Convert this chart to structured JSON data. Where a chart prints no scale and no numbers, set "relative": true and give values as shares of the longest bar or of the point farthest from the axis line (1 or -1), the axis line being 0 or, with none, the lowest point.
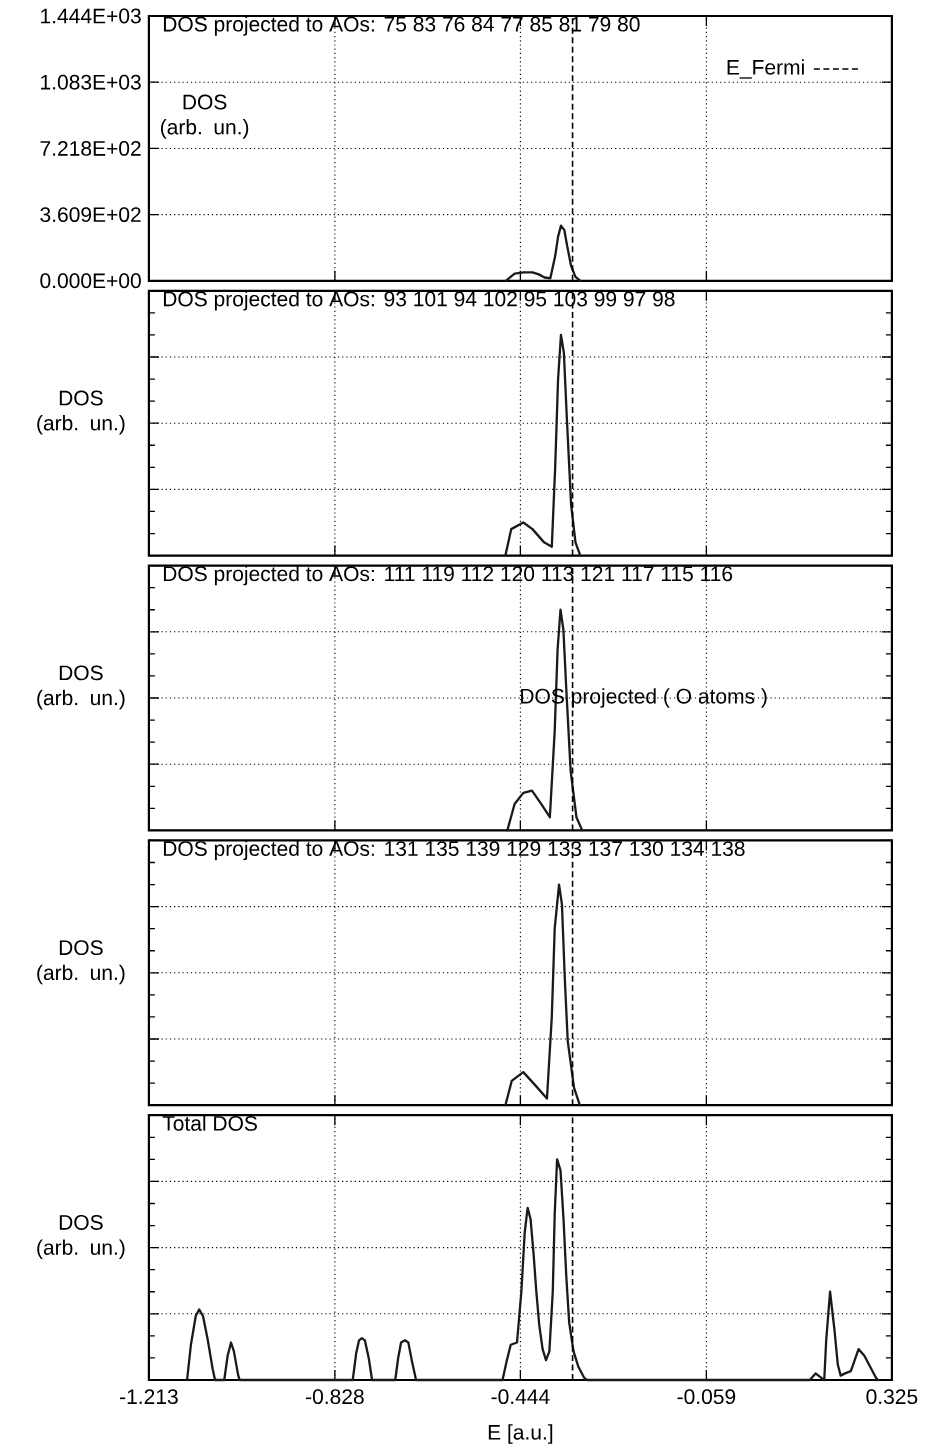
{
  "chart_data": [
    {
      "type": "line",
      "title": "DOS projected to AOs: 75 83 76 84 77 85 81 79 80",
      "ylabel": "DOS (arb. un.)",
      "x": [
        -0.474,
        -0.456,
        -0.437,
        -0.419,
        -0.406,
        -0.394,
        -0.382,
        -0.372,
        -0.366,
        -0.36,
        -0.353,
        -0.347,
        -0.339,
        -0.33,
        -0.32
      ],
      "values": [
        0,
        39,
        46,
        46,
        35,
        18,
        14,
        135,
        241,
        301,
        276,
        188,
        81,
        21,
        0
      ],
      "color": "#1a1a1a",
      "xlim": [
        -1.213,
        0.325
      ],
      "ylim": [
        0,
        1444
      ],
      "xticks": [
        -1.213,
        -0.828,
        -0.444,
        -0.059,
        0.325
      ],
      "yticks": [
        {
          "value": 0,
          "label": "0.000E+00"
        },
        {
          "value": 360.9,
          "label": "3.609E+02"
        },
        {
          "value": 721.8,
          "label": "7.218E+02"
        },
        {
          "value": 1083,
          "label": "1.083E+03"
        },
        {
          "value": 1444,
          "label": "1.444E+03"
        }
      ],
      "tick_labels": "y",
      "grid": true,
      "ref_lines": [
        {
          "axis": "x",
          "value": -0.336,
          "label": "E_Fermi",
          "line_style": "dashed"
        }
      ]
    },
    {
      "type": "line",
      "relative": true,
      "title": "DOS projected to AOs: 93 101 94 102 95 103 99 97 98",
      "ylabel": "DOS (arb. un.)",
      "x": [
        -0.475,
        -0.463,
        -0.438,
        -0.419,
        -0.395,
        -0.379,
        -0.372,
        -0.366,
        -0.36,
        -0.354,
        -0.348,
        -0.339,
        -0.33,
        -0.32
      ],
      "values": [
        0,
        0.12,
        0.15,
        0.12,
        0.06,
        0.04,
        0.4,
        0.8,
        1,
        0.92,
        0.63,
        0.23,
        0.06,
        0
      ],
      "color": "#1a1a1a",
      "xlim": [
        -1.213,
        0.325
      ],
      "xticks": [
        -1.213,
        -0.828,
        -0.444,
        -0.059,
        0.325
      ],
      "tick_labels": false,
      "grid": true,
      "ref_lines": [
        {
          "axis": "x",
          "value": -0.336,
          "line_style": "dashed"
        }
      ]
    },
    {
      "type": "line",
      "relative": true,
      "title": "DOS projected to AOs: 111 119 112 120 113 121 117 115 116",
      "ylabel": "DOS (arb. un.)",
      "annotations": [
        "DOS projected ( O atoms )"
      ],
      "x": [
        -0.471,
        -0.456,
        -0.438,
        -0.42,
        -0.401,
        -0.383,
        -0.373,
        -0.367,
        -0.361,
        -0.355,
        -0.349,
        -0.34,
        -0.328,
        -0.316
      ],
      "values": [
        0,
        0.12,
        0.17,
        0.18,
        0.12,
        0.06,
        0.45,
        0.82,
        1,
        0.91,
        0.64,
        0.27,
        0.06,
        0
      ],
      "color": "#1a1a1a",
      "xlim": [
        -1.213,
        0.325
      ],
      "xticks": [
        -1.213,
        -0.828,
        -0.444,
        -0.059,
        0.325
      ],
      "tick_labels": false,
      "grid": true,
      "ref_lines": [
        {
          "axis": "x",
          "value": -0.336,
          "line_style": "dashed"
        }
      ]
    },
    {
      "type": "line",
      "relative": true,
      "title": "DOS projected to AOs: 131 135 139 129 133 137 130 134 138",
      "ylabel": "DOS (arb. un.)",
      "x": [
        -0.475,
        -0.462,
        -0.438,
        -0.413,
        -0.389,
        -0.379,
        -0.373,
        -0.364,
        -0.358,
        -0.352,
        -0.346,
        -0.333,
        -0.321
      ],
      "values": [
        0,
        0.11,
        0.15,
        0.09,
        0.03,
        0.4,
        0.8,
        1,
        0.91,
        0.57,
        0.29,
        0.08,
        0
      ],
      "color": "#1a1a1a",
      "xlim": [
        -1.213,
        0.325
      ],
      "xticks": [
        -1.213,
        -0.828,
        -0.444,
        -0.059,
        0.325
      ],
      "tick_labels": false,
      "grid": true,
      "ref_lines": [
        {
          "axis": "x",
          "value": -0.336,
          "line_style": "dashed"
        }
      ]
    },
    {
      "type": "line",
      "relative": true,
      "title": "Total DOS",
      "ylabel": "DOS (arb. un.)",
      "xlabel": "E [a.u.]",
      "x": [
        -1.134,
        -1.126,
        -1.116,
        -1.109,
        -1.101,
        -1.091,
        -1.081,
        -1.076,
        -1.057,
        -1.05,
        -1.043,
        -1.037,
        -1.028,
        -1.025,
        -0.791,
        -0.784,
        -0.778,
        -0.772,
        -0.766,
        -0.758,
        -0.751,
        -0.703,
        -0.697,
        -0.691,
        -0.683,
        -0.676,
        -0.668,
        -0.66,
        -0.481,
        -0.472,
        -0.464,
        -0.451,
        -0.442,
        -0.435,
        -0.429,
        -0.423,
        -0.417,
        -0.411,
        -0.405,
        -0.398,
        -0.391,
        -0.384,
        -0.377,
        -0.373,
        -0.368,
        -0.361,
        -0.355,
        -0.349,
        -0.343,
        -0.334,
        -0.324,
        -0.312,
        -0.306,
        0.155,
        0.167,
        0.179,
        0.185,
        0.189,
        0.197,
        0.206,
        0.213,
        0.219,
        0.228,
        0.24,
        0.256,
        0.268,
        0.28,
        0.292,
        0.296
      ],
      "values": [
        0,
        0.16,
        0.29,
        0.32,
        0.29,
        0.18,
        0.05,
        0,
        0,
        0.11,
        0.17,
        0.13,
        0.02,
        0,
        0,
        0.12,
        0.18,
        0.19,
        0.18,
        0.1,
        0,
        0,
        0.1,
        0.17,
        0.18,
        0.17,
        0.08,
        0,
        0,
        0.09,
        0.16,
        0.17,
        0.4,
        0.67,
        0.78,
        0.73,
        0.58,
        0.4,
        0.25,
        0.14,
        0.09,
        0.13,
        0.4,
        0.75,
        1,
        0.95,
        0.74,
        0.47,
        0.26,
        0.13,
        0.06,
        0.01,
        0,
        0,
        0.03,
        0.01,
        0,
        0.18,
        0.4,
        0.23,
        0.07,
        0.02,
        0.03,
        0.04,
        0.14,
        0.11,
        0.06,
        0.01,
        0
      ],
      "color": "#1a1a1a",
      "xlim": [
        -1.213,
        0.325
      ],
      "xticks": [
        -1.213,
        -0.828,
        -0.444,
        -0.059,
        0.325
      ],
      "tick_labels": "x",
      "grid": true,
      "ref_lines": [
        {
          "axis": "x",
          "value": -0.336,
          "line_style": "dashed"
        }
      ]
    }
  ]
}
